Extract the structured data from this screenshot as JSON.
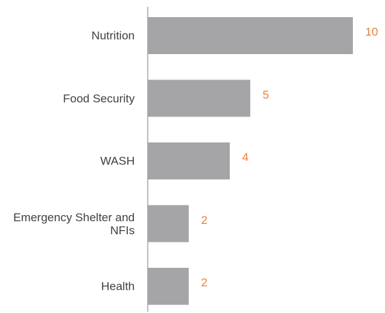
{
  "chart_data": {
    "type": "bar",
    "orientation": "horizontal",
    "categories": [
      "Nutrition",
      "Food Security",
      "WASH",
      "Emergency Shelter and NFIs",
      "Health"
    ],
    "values": [
      10,
      5,
      4,
      2,
      2
    ],
    "color": "#a5a5a8",
    "label_color": "#f07f3c",
    "xlim": [
      0,
      10
    ]
  }
}
